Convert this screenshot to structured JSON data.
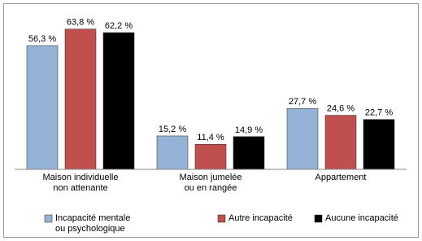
{
  "chart_data": {
    "type": "bar",
    "categories": [
      "Maison individuelle\nnon attenante",
      "Maison jumelée\nou en rangée",
      "Appartement"
    ],
    "series": [
      {
        "name": "Incapacité mentale\nou psychologique",
        "color": "#95b3d7",
        "values": [
          56.3,
          15.2,
          27.7
        ],
        "value_labels": [
          "56,3 %",
          "15,2 %",
          "27,7 %"
        ]
      },
      {
        "name": "Autre incapacité",
        "color": "#c0504d",
        "values": [
          63.8,
          11.4,
          24.6
        ],
        "value_labels": [
          "63,8 %",
          "11,4 %",
          "24,6 %"
        ]
      },
      {
        "name": "Aucune incapacité",
        "color": "#000000",
        "values": [
          62.2,
          14.9,
          22.7
        ],
        "value_labels": [
          "62,2 %",
          "14,9 %",
          "22,7 %"
        ]
      }
    ],
    "ylim": [
      0,
      70
    ]
  }
}
